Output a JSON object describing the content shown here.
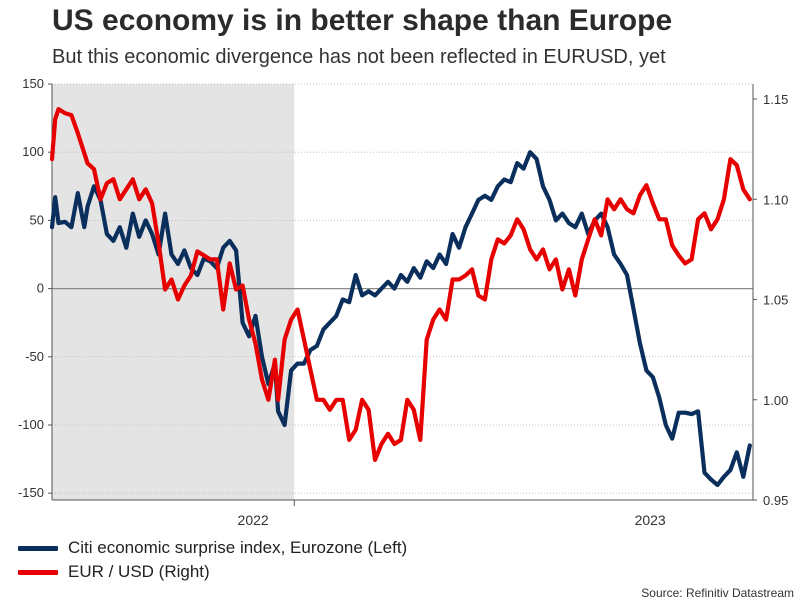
{
  "header": {
    "title": "US economy is in better shape than Europe",
    "subtitle": "But this economic divergence has not been reflected in EURUSD, yet"
  },
  "source": "Source: Refinitiv Datastream",
  "colors": {
    "series_left": "#0b2f5c",
    "series_right": "#e60000",
    "shade": "#e4e4e4"
  },
  "chart_data": {
    "type": "line",
    "title": "US economy is in better shape than Europe",
    "subtitle": "But this economic divergence has not been reflected in EURUSD, yet",
    "x_range": [
      2021.25,
      2023.42
    ],
    "x_ticks": [
      {
        "value": 2022.0,
        "label": "2022"
      },
      {
        "value": 2023.0,
        "label": "2023"
      }
    ],
    "shaded_region": [
      2021.25,
      2022.0
    ],
    "y_left": {
      "lim": [
        -155,
        150
      ],
      "ticks": [
        150,
        100,
        50,
        0,
        -50,
        -100,
        -150
      ]
    },
    "y_right": {
      "lim": [
        0.95,
        1.1575
      ],
      "ticks": [
        1.15,
        1.1,
        1.05,
        1.0,
        0.95
      ]
    },
    "zero_line": 0,
    "series": [
      {
        "name": "Citi economic surprise index, Eurozone (Left)",
        "axis": "left",
        "x": [
          2021.25,
          2021.26,
          2021.27,
          2021.29,
          2021.31,
          2021.33,
          2021.35,
          2021.36,
          2021.38,
          2021.4,
          2021.42,
          2021.44,
          2021.46,
          2021.48,
          2021.5,
          2021.52,
          2021.54,
          2021.56,
          2021.58,
          2021.6,
          2021.62,
          2021.64,
          2021.66,
          2021.68,
          2021.7,
          2021.72,
          2021.74,
          2021.76,
          2021.78,
          2021.8,
          2021.82,
          2021.84,
          2021.86,
          2021.88,
          2021.9,
          2021.92,
          2021.94,
          2021.95,
          2021.97,
          2021.99,
          2022.01,
          2022.03,
          2022.05,
          2022.07,
          2022.09,
          2022.11,
          2022.13,
          2022.15,
          2022.17,
          2022.19,
          2022.21,
          2022.23,
          2022.25,
          2022.27,
          2022.29,
          2022.31,
          2022.33,
          2022.35,
          2022.37,
          2022.39,
          2022.41,
          2022.43,
          2022.45,
          2022.47,
          2022.49,
          2022.51,
          2022.53,
          2022.55,
          2022.57,
          2022.59,
          2022.61,
          2022.63,
          2022.65,
          2022.67,
          2022.69,
          2022.71,
          2022.73,
          2022.75,
          2022.77,
          2022.79,
          2022.81,
          2022.83,
          2022.85,
          2022.87,
          2022.89,
          2022.91,
          2022.93,
          2022.95,
          2022.97,
          2022.99,
          2023.01,
          2023.03,
          2023.05,
          2023.07,
          2023.09,
          2023.11,
          2023.13,
          2023.15,
          2023.17,
          2023.19,
          2023.21,
          2023.23,
          2023.25,
          2023.27,
          2023.29,
          2023.31,
          2023.33,
          2023.35,
          2023.37,
          2023.39,
          2023.41
        ],
        "values": [
          45,
          67,
          48,
          49,
          45,
          70,
          45,
          60,
          75,
          65,
          40,
          35,
          45,
          30,
          55,
          38,
          50,
          40,
          25,
          55,
          25,
          18,
          28,
          15,
          10,
          22,
          20,
          15,
          30,
          35,
          28,
          -25,
          -35,
          -20,
          -50,
          -70,
          -55,
          -90,
          -100,
          -60,
          -55,
          -55,
          -45,
          -42,
          -30,
          -25,
          -20,
          -8,
          -10,
          10,
          -5,
          -2,
          -5,
          0,
          5,
          0,
          10,
          5,
          15,
          8,
          20,
          15,
          25,
          18,
          40,
          30,
          45,
          55,
          65,
          68,
          65,
          75,
          80,
          78,
          92,
          88,
          100,
          95,
          75,
          65,
          50,
          55,
          48,
          45,
          55,
          40,
          50,
          55,
          45,
          25,
          18,
          10,
          -15,
          -40,
          -60,
          -65,
          -80,
          -100,
          -110,
          -91,
          -91,
          -92,
          -90,
          -135,
          -140,
          -144,
          -138,
          -133,
          -120,
          -138,
          -115
        ]
      },
      {
        "name": "EUR / USD (Right)",
        "axis": "right",
        "x": [
          2021.25,
          2021.26,
          2021.27,
          2021.29,
          2021.31,
          2021.33,
          2021.35,
          2021.36,
          2021.38,
          2021.4,
          2021.42,
          2021.44,
          2021.46,
          2021.48,
          2021.5,
          2021.52,
          2021.54,
          2021.56,
          2021.58,
          2021.6,
          2021.62,
          2021.64,
          2021.66,
          2021.68,
          2021.7,
          2021.72,
          2021.74,
          2021.76,
          2021.78,
          2021.8,
          2021.82,
          2021.84,
          2021.86,
          2021.88,
          2021.9,
          2021.92,
          2021.94,
          2021.95,
          2021.97,
          2021.99,
          2022.01,
          2022.03,
          2022.05,
          2022.07,
          2022.09,
          2022.11,
          2022.13,
          2022.15,
          2022.17,
          2022.19,
          2022.21,
          2022.23,
          2022.25,
          2022.27,
          2022.29,
          2022.31,
          2022.33,
          2022.35,
          2022.37,
          2022.39,
          2022.41,
          2022.43,
          2022.45,
          2022.47,
          2022.49,
          2022.51,
          2022.53,
          2022.55,
          2022.57,
          2022.59,
          2022.61,
          2022.63,
          2022.65,
          2022.67,
          2022.69,
          2022.71,
          2022.73,
          2022.75,
          2022.77,
          2022.79,
          2022.81,
          2022.83,
          2022.85,
          2022.87,
          2022.89,
          2022.91,
          2022.93,
          2022.95,
          2022.97,
          2022.99,
          2023.01,
          2023.03,
          2023.05,
          2023.07,
          2023.09,
          2023.11,
          2023.13,
          2023.15,
          2023.17,
          2023.19,
          2023.21,
          2023.23,
          2023.25,
          2023.27,
          2023.29,
          2023.31,
          2023.33,
          2023.35,
          2023.37,
          2023.39,
          2023.41
        ],
        "values": [
          1.12,
          1.14,
          1.145,
          1.143,
          1.142,
          1.133,
          1.123,
          1.118,
          1.115,
          1.1,
          1.108,
          1.11,
          1.1,
          1.105,
          1.11,
          1.1,
          1.105,
          1.098,
          1.078,
          1.055,
          1.06,
          1.05,
          1.057,
          1.062,
          1.074,
          1.072,
          1.07,
          1.07,
          1.045,
          1.068,
          1.055,
          1.057,
          1.04,
          1.028,
          1.01,
          1.0,
          1.02,
          1.0,
          1.03,
          1.04,
          1.045,
          1.03,
          1.015,
          1.0,
          1.0,
          0.995,
          1.0,
          1.0,
          0.98,
          0.985,
          1.0,
          0.995,
          0.97,
          0.978,
          0.983,
          0.978,
          0.98,
          1.0,
          0.995,
          0.98,
          1.03,
          1.04,
          1.045,
          1.04,
          1.06,
          1.06,
          1.062,
          1.065,
          1.052,
          1.05,
          1.07,
          1.08,
          1.078,
          1.082,
          1.09,
          1.085,
          1.075,
          1.07,
          1.075,
          1.065,
          1.07,
          1.055,
          1.065,
          1.052,
          1.07,
          1.08,
          1.09,
          1.082,
          1.1,
          1.095,
          1.1,
          1.095,
          1.093,
          1.102,
          1.107,
          1.098,
          1.09,
          1.09,
          1.077,
          1.072,
          1.068,
          1.07,
          1.09,
          1.093,
          1.085,
          1.09,
          1.1,
          1.12,
          1.117,
          1.105,
          1.1
        ]
      }
    ]
  },
  "legend": [
    {
      "label": "Citi economic surprise index, Eurozone (Left)",
      "color": "#0b2f5c"
    },
    {
      "label": "EUR / USD (Right)",
      "color": "#e60000"
    }
  ]
}
